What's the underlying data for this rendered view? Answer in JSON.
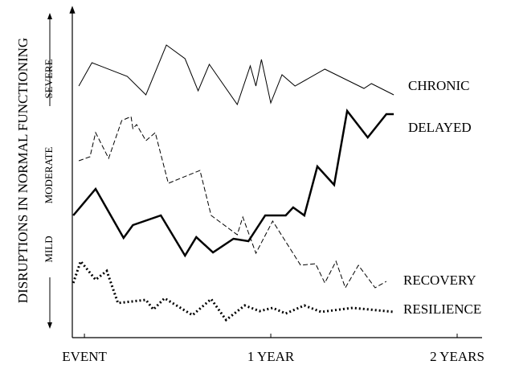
{
  "chart_data": {
    "type": "line",
    "y_label": "DISRUPTIONS IN NORMAL FUNCTIONING",
    "y_levels": [
      "MILD",
      "MODERATE",
      "SEVERE"
    ],
    "xlim": [
      -0.065,
      2.0
    ],
    "ylim": [
      0,
      380
    ],
    "xticks": [
      {
        "value": 0,
        "label": "EVENT"
      },
      {
        "value": 1,
        "label": "1 YEAR"
      },
      {
        "value": 2,
        "label": "2 YEARS"
      }
    ],
    "color": "#000000",
    "series": [
      {
        "name": "CHRONIC",
        "line_style": "solid",
        "line_width": 1,
        "x": [
          -0.03,
          0.04,
          0.23,
          0.33,
          0.44,
          0.54,
          0.61,
          0.67,
          0.82,
          0.89,
          0.92,
          0.95,
          1.0,
          1.06,
          1.13,
          1.29,
          1.5,
          1.54,
          1.66
        ],
        "values": [
          293,
          322,
          305,
          282,
          344,
          327,
          287,
          320,
          270,
          318,
          293,
          326,
          272,
          307,
          293,
          314,
          290,
          296,
          282
        ]
      },
      {
        "name": "DELAYED",
        "line_style": "solid",
        "line_width": 2.5,
        "x": [
          -0.06,
          0.06,
          0.21,
          0.26,
          0.41,
          0.54,
          0.6,
          0.69,
          0.8,
          0.88,
          0.97,
          1.08,
          1.12,
          1.18,
          1.25,
          1.34,
          1.41,
          1.52,
          1.62,
          1.66
        ],
        "values": [
          132,
          165,
          104,
          120,
          132,
          82,
          105,
          86,
          103,
          100,
          132,
          132,
          142,
          132,
          193,
          170,
          262,
          229,
          258,
          258
        ]
      },
      {
        "name": "RECOVERY",
        "line_style": "dashed",
        "line_width": 1,
        "x": [
          -0.03,
          0.03,
          0.06,
          0.13,
          0.2,
          0.25,
          0.26,
          0.28,
          0.33,
          0.38,
          0.45,
          0.62,
          0.68,
          0.82,
          0.85,
          0.92,
          1.01,
          1.16,
          1.24,
          1.29,
          1.35,
          1.4,
          1.47,
          1.56,
          1.62
        ],
        "values": [
          200,
          205,
          235,
          203,
          250,
          255,
          240,
          245,
          225,
          235,
          172,
          188,
          132,
          108,
          130,
          85,
          125,
          70,
          72,
          48,
          75,
          42,
          70,
          42,
          50
        ]
      },
      {
        "name": "RESILIENCE",
        "line_style": "dotted",
        "line_width": 3,
        "x": [
          -0.06,
          -0.02,
          0.06,
          0.12,
          0.18,
          0.33,
          0.37,
          0.43,
          0.58,
          0.68,
          0.76,
          0.86,
          0.94,
          1.01,
          1.08,
          1.18,
          1.27,
          1.44,
          1.66
        ],
        "values": [
          48,
          75,
          52,
          63,
          23,
          27,
          15,
          29,
          8,
          28,
          2,
          20,
          13,
          17,
          10,
          20,
          12,
          17,
          12
        ]
      }
    ]
  }
}
